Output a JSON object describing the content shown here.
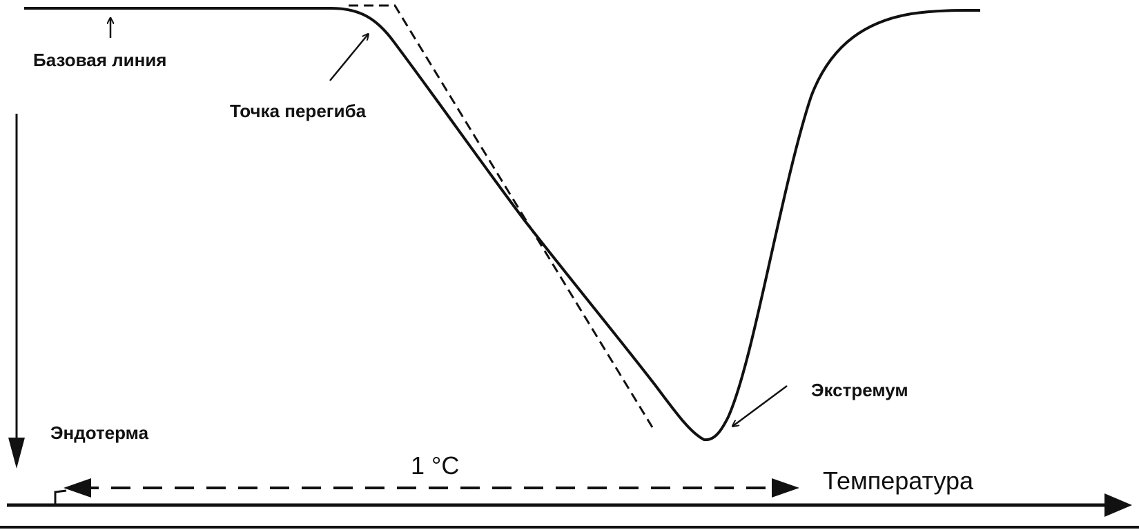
{
  "labels": {
    "baseline": "Базовая линия",
    "inflection": "Точка перегиба",
    "extremum": "Экстремум",
    "endotherm": "Эндотерма",
    "delta_t": "1 °C",
    "temperature": "Температура"
  },
  "colors": {
    "ink": "#111111",
    "background": "#ffffff"
  }
}
